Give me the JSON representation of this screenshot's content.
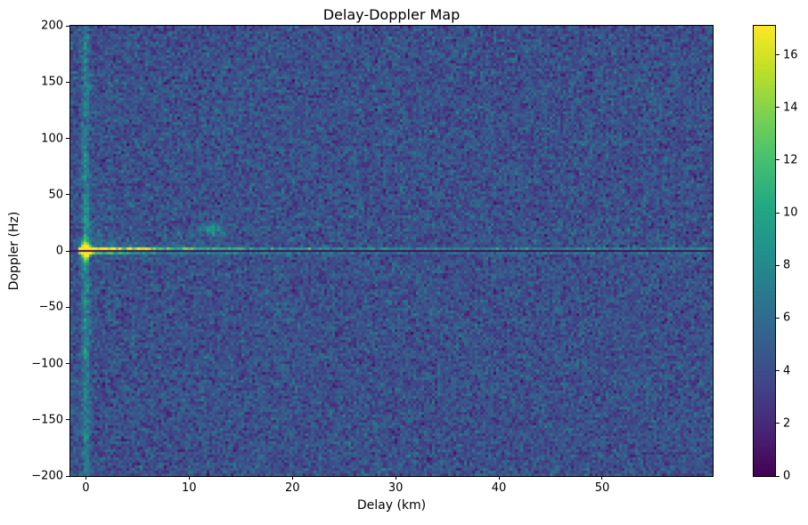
{
  "figure": {
    "background": "#ffffff",
    "text_color": "#000000",
    "spine_color": "#000000"
  },
  "chart_data": {
    "type": "heatmap",
    "title": "Delay-Doppler Map",
    "xlabel": "Delay (km)",
    "ylabel": "Doppler (Hz)",
    "xlim": [
      -1.5,
      60.7
    ],
    "ylim": [
      -200,
      200
    ],
    "xticks": [
      0,
      10,
      20,
      30,
      40,
      50
    ],
    "yticks": [
      -200,
      -150,
      -100,
      -50,
      0,
      50,
      100,
      150,
      200
    ],
    "colormap": "viridis",
    "colormap_stops": [
      [
        0.0,
        "#440154"
      ],
      [
        0.1,
        "#482475"
      ],
      [
        0.2,
        "#414487"
      ],
      [
        0.3,
        "#355f8d"
      ],
      [
        0.4,
        "#2a788e"
      ],
      [
        0.5,
        "#21918c"
      ],
      [
        0.6,
        "#22a884"
      ],
      [
        0.7,
        "#44bf70"
      ],
      [
        0.8,
        "#7ad151"
      ],
      [
        0.9,
        "#bddf26"
      ],
      [
        1.0,
        "#fde725"
      ]
    ],
    "colorbar": {
      "vmin": 0,
      "vmax": 17.1,
      "ticks": [
        0,
        2,
        4,
        6,
        8,
        10,
        12,
        14,
        16
      ]
    },
    "grid": {
      "cols": 240,
      "rows": 169
    },
    "noise": {
      "mean": 4.2,
      "std": 1.2,
      "seed": 1337
    },
    "features": {
      "main_peak": {
        "delay_km": 0,
        "doppler_hz": 0,
        "amplitude": 17,
        "sigma_delay_km": 0.55,
        "sigma_doppler_hz": 4
      },
      "zero_doppler_notch": {
        "doppler_hz": 0,
        "halfwidth_hz": 1.2,
        "value": 0.4
      },
      "vertical_streak": {
        "delay_km": 0,
        "sigma_km": 0.35,
        "base_amp": 2.2,
        "slow_amp": 1.6,
        "slow_decay_hz": 70,
        "core_amp": 9,
        "core_sigma_hz": 9
      },
      "ridge_above_zero": {
        "doppler_band_hz": [
          1.2,
          3.8
        ],
        "amp_near": 7.0,
        "decay_near_km": 7,
        "amp_far": 3.2,
        "decay_far_km": 40,
        "amp_floor": 2.2
      },
      "ridge_below_zero": {
        "doppler_band_hz": [
          -3.8,
          -1.2
        ],
        "amp_near": 4.0,
        "decay_near_km": 7,
        "amp_far": 1.6,
        "decay_far_km": 40,
        "amp_floor": 1.1
      },
      "clutter_glow_above": {
        "amp": 5.5,
        "delay_decay_km": 6,
        "doppler_decay_hz": 9
      },
      "clutter_glow_below": {
        "amp": 2.2,
        "delay_decay_km": 4,
        "doppler_decay_hz": 5
      },
      "target_blob": {
        "delay_km": 12.4,
        "doppler_hz": 19,
        "amplitude": 4.5,
        "sigma_delay_km": 1.1,
        "sigma_doppler_hz": 5
      }
    }
  }
}
